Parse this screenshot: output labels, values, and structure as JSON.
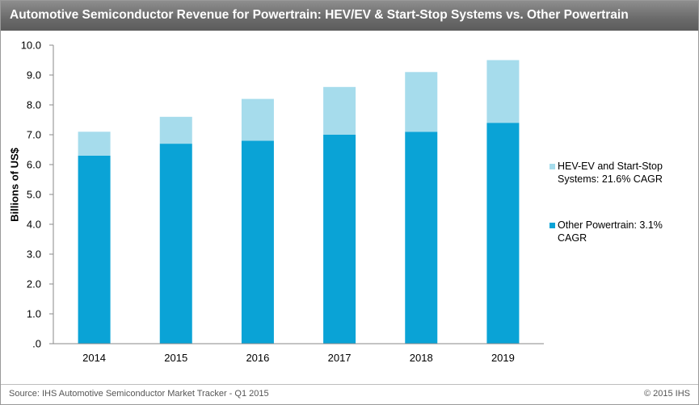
{
  "title": "Automotive Semiconductor Revenue for Powertrain: HEV/EV & Start-Stop Systems vs. Other Powertrain",
  "footer": {
    "source": "Source: IHS Automotive Semiconductor Market Tracker  - Q1 2015",
    "copyright": "© 2015 IHS"
  },
  "colors": {
    "hev": "#a6dcec",
    "other": "#0aa3d6",
    "title_bar": "#6e6e6e"
  },
  "chart_data": {
    "type": "bar",
    "stacked": true,
    "categories": [
      "2014",
      "2015",
      "2016",
      "2017",
      "2018",
      "2019"
    ],
    "series": [
      {
        "name": "Other Powertrain: 3.1% CAGR",
        "values": [
          6.3,
          6.7,
          6.8,
          7.0,
          7.1,
          7.4
        ]
      },
      {
        "name": "HEV-EV and Start-Stop Systems: 21.6% CAGR",
        "values": [
          0.8,
          0.9,
          1.4,
          1.6,
          2.0,
          2.1
        ]
      }
    ],
    "ylabel": "Billions of US$",
    "ylim": [
      0,
      10
    ],
    "yticks": [
      ".0",
      "1.0",
      "2.0",
      "3.0",
      "4.0",
      "5.0",
      "6.0",
      "7.0",
      "8.0",
      "9.0",
      "10.0"
    ],
    "legend_position": "right",
    "grid": false
  }
}
